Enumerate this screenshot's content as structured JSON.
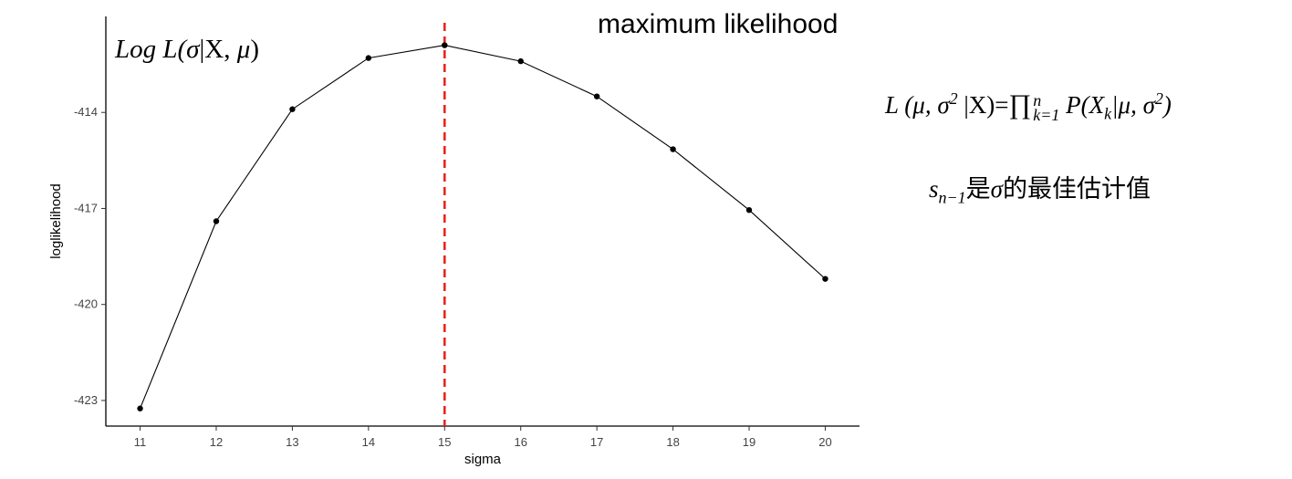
{
  "chart_data": {
    "type": "line",
    "title": "maximum likelihood",
    "xlabel": "sigma",
    "ylabel": "loglikelihood",
    "x": [
      11,
      12,
      13,
      14,
      15,
      16,
      17,
      18,
      19,
      20
    ],
    "series": [
      {
        "values": [
          -423.25,
          -417.4,
          -413.9,
          -412.3,
          -411.9,
          -412.4,
          -413.5,
          -415.15,
          -417.05,
          -419.2
        ]
      }
    ],
    "xlim": [
      10.55,
      20.45
    ],
    "ylim": [
      -423.8,
      -411.0
    ],
    "xticks": [
      11,
      12,
      13,
      14,
      15,
      16,
      17,
      18,
      19,
      20
    ],
    "yticks": [
      -414,
      -417,
      -420,
      -423
    ],
    "reference_line": {
      "x": 15,
      "color": "#e8251f",
      "style": "dashed"
    },
    "line_color": "#000000",
    "point_color": "#000000",
    "grid": false,
    "legend": "none"
  },
  "annotations": {
    "log_likelihood_label": {
      "parts": [
        "Log L(",
        "σ",
        "|",
        "X",
        ", ",
        "μ",
        ")"
      ]
    },
    "likelihood_formula": {
      "lhs": "L (μ, σ",
      "lhs_sup": "2",
      "lhs_rest": " |X)=",
      "prod": "∏",
      "prod_sub": "k=1",
      "prod_sup": "n",
      "rhs": " P(X",
      "rhs_sub": "k",
      "rhs_rest": "|μ, σ",
      "rhs_sup": "2",
      "rhs_end": ")"
    },
    "estimator_note": {
      "s": "s",
      "s_sub": "n−1",
      "text1": "是",
      "sigma": "σ",
      "text2": "的最佳估计值"
    }
  }
}
